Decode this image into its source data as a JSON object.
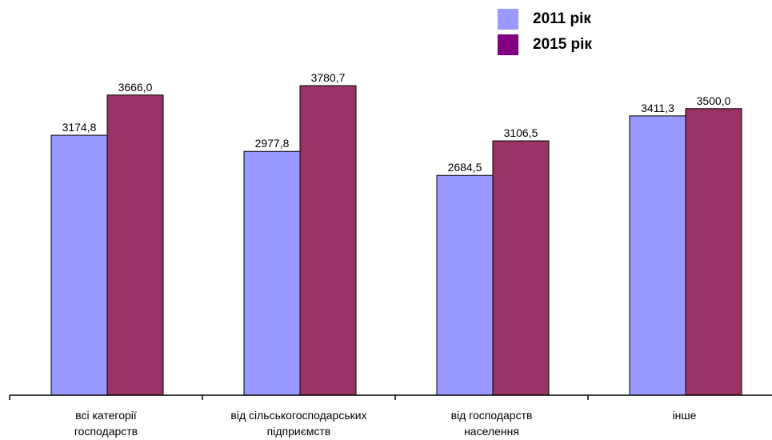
{
  "chart_data": {
    "type": "bar",
    "categories": [
      [
        "всі категорії",
        "господарств"
      ],
      [
        "від сільськогосподарських",
        "підприємств"
      ],
      [
        "від господарств",
        "населення"
      ],
      [
        "інше"
      ]
    ],
    "series": [
      {
        "name": "2011 рік",
        "color": "#9999ff",
        "values": [
          3174.8,
          2977.8,
          2684.5,
          3411.3
        ],
        "labels": [
          "3174,8",
          "2977,8",
          "2684,5",
          "3411,3"
        ]
      },
      {
        "name": "2015 рік",
        "color": "#993366",
        "values": [
          3666.0,
          3780.7,
          3106.5,
          3500.0
        ],
        "labels": [
          "3666,0",
          "3780,7",
          "3106,5",
          "3500,0"
        ]
      }
    ],
    "legend_colors": [
      "#9999ff",
      "#800080"
    ],
    "ylim": [
      0,
      4200
    ],
    "grid": false,
    "legend_position": "top-right"
  }
}
